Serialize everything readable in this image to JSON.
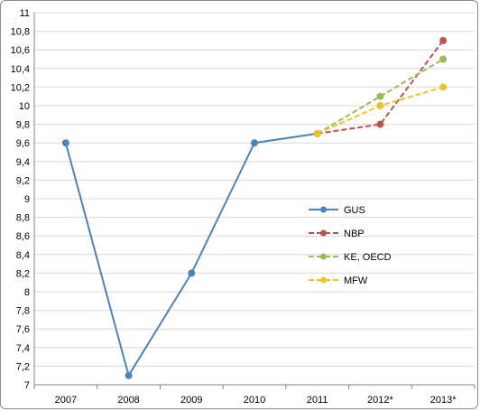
{
  "chart_data": {
    "type": "line",
    "title": "",
    "xlabel": "",
    "ylabel": "",
    "categories": [
      "2007",
      "2008",
      "2009",
      "2010",
      "2011",
      "2012*",
      "2013*"
    ],
    "ylim": [
      7,
      11
    ],
    "y_ticks": [
      "7",
      "7,2",
      "7,4",
      "7,6",
      "7,8",
      "8",
      "8,2",
      "8,4",
      "8,6",
      "8,8",
      "9",
      "9,2",
      "9,4",
      "9,6",
      "9,8",
      "10",
      "10,2",
      "10,4",
      "10,6",
      "10,8",
      "11"
    ],
    "grid": "horizontal",
    "legend_position": "center-right",
    "series": [
      {
        "name": "GUS",
        "color": "#4f81bd",
        "dash": "solid",
        "values": [
          9.6,
          7.1,
          8.2,
          9.6,
          9.7,
          null,
          null
        ]
      },
      {
        "name": "NBP",
        "color": "#c0504d",
        "dash": "dashed",
        "values": [
          null,
          null,
          null,
          null,
          9.7,
          9.8,
          10.7
        ]
      },
      {
        "name": "KE, OECD",
        "color": "#9bbb59",
        "dash": "dashed",
        "values": [
          null,
          null,
          null,
          null,
          9.7,
          10.1,
          10.5
        ]
      },
      {
        "name": "MFW",
        "color": "#f2c12e",
        "dash": "dashed",
        "values": [
          null,
          null,
          null,
          null,
          9.7,
          10.0,
          10.2
        ]
      }
    ]
  }
}
